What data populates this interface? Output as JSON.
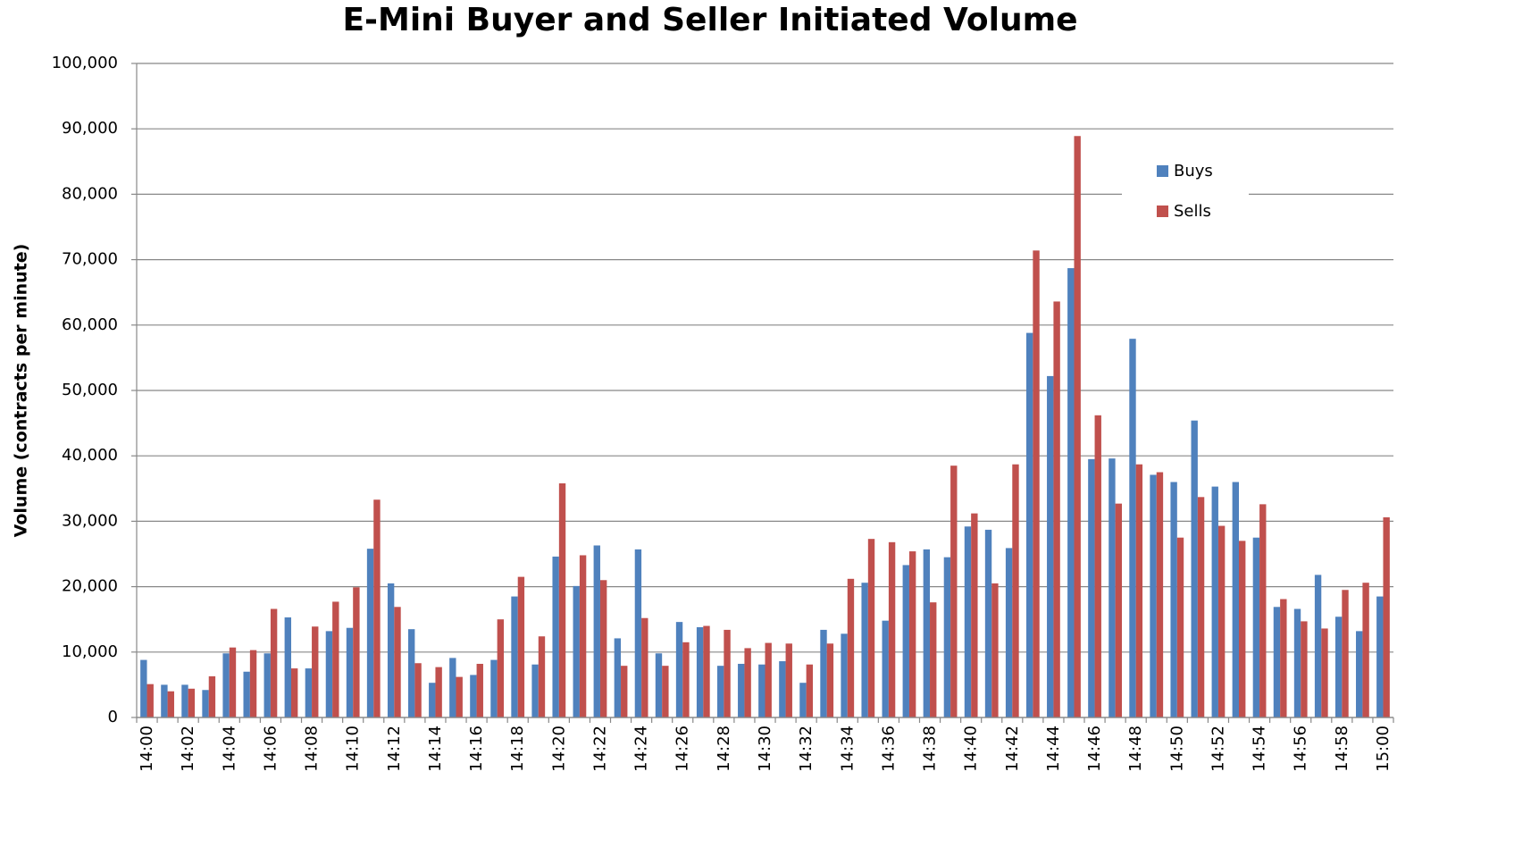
{
  "chart_data": {
    "type": "bar",
    "title": "E-Mini Buyer and Seller Initiated Volume",
    "y_label": "Volume (contracts per minute)",
    "categories": [
      "14:00",
      null,
      "14:02",
      null,
      "14:04",
      null,
      "14:06",
      null,
      "14:08",
      null,
      "14:10",
      null,
      "14:12",
      null,
      "14:14",
      null,
      "14:16",
      null,
      "14:18",
      null,
      "14:20",
      null,
      "14:22",
      null,
      "14:24",
      null,
      "14:26",
      null,
      "14:28",
      null,
      "14:30",
      null,
      "14:32",
      null,
      "14:34",
      null,
      "14:36",
      null,
      "14:38",
      null,
      "14:40",
      null,
      "14:42",
      null,
      "14:44",
      null,
      "14:46",
      null,
      "14:48",
      null,
      "14:50",
      null,
      "14:52",
      null,
      "14:54",
      null,
      "14:56",
      null,
      "14:58",
      null,
      "15:00"
    ],
    "series": [
      {
        "name": "Buys",
        "color": "#4f81bd",
        "values": [
          8800,
          5000,
          5000,
          4200,
          9800,
          7000,
          9800,
          15300,
          7500,
          13200,
          13700,
          25800,
          20500,
          13500,
          5300,
          9100,
          6500,
          8800,
          18500,
          8100,
          24600,
          20100,
          26300,
          12100,
          25700,
          9800,
          14600,
          13800,
          7900,
          8200,
          8100,
          8600,
          5300,
          13400,
          12800,
          20600,
          14800,
          23300,
          25700,
          24500,
          29200,
          28700,
          25900,
          58800,
          52200,
          68700,
          39500,
          39600,
          57900,
          37100,
          36000,
          45400,
          35300,
          36000,
          27500,
          16900,
          16600,
          21800,
          15400,
          13200,
          18500
        ]
      },
      {
        "name": "Sells",
        "color": "#c0504d",
        "values": [
          5100,
          4000,
          4400,
          6300,
          10700,
          10300,
          16600,
          7500,
          13900,
          17700,
          19900,
          33300,
          16900,
          8300,
          7700,
          6200,
          8200,
          15000,
          21500,
          12400,
          35800,
          24800,
          21000,
          7900,
          15200,
          7900,
          11500,
          14000,
          13400,
          10600,
          11400,
          11300,
          8100,
          11300,
          21200,
          27300,
          26800,
          25400,
          17600,
          38500,
          31200,
          20500,
          38700,
          71400,
          63600,
          88900,
          46200,
          32700,
          38700,
          37500,
          27500,
          33700,
          29300,
          27000,
          32600,
          18100,
          14700,
          13600,
          19500,
          20600,
          30600
        ]
      }
    ],
    "ylim": [
      0,
      100000
    ],
    "yticks": [
      0,
      {
        "value": 10000,
        "label": "10,000"
      },
      {
        "value": 20000,
        "label": "20,000"
      },
      {
        "value": 30000,
        "label": "30,000"
      },
      {
        "value": 40000,
        "label": "40,000"
      },
      {
        "value": 50000,
        "label": "50,000"
      },
      {
        "value": 60000,
        "label": "60,000"
      },
      {
        "value": 70000,
        "label": "70,000"
      },
      {
        "value": 80000,
        "label": "80,000"
      },
      {
        "value": 90000,
        "label": "90,000"
      },
      {
        "value": 100000,
        "label": "100,000"
      }
    ],
    "grid": true,
    "legend": "upper right"
  }
}
